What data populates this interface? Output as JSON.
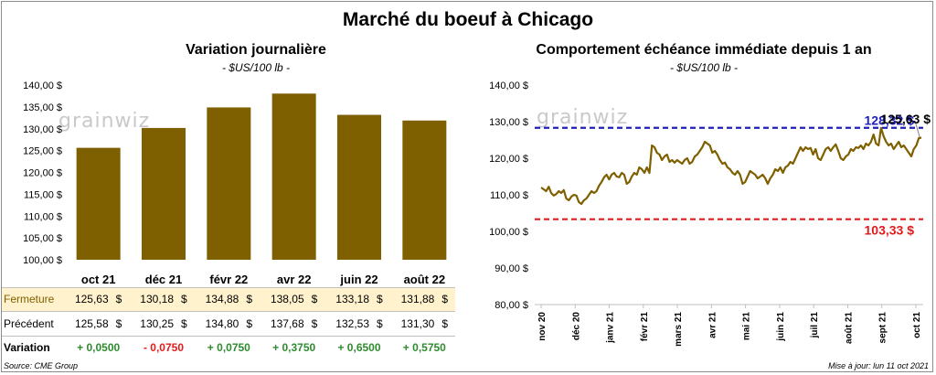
{
  "title": "Marché du boeuf à Chicago",
  "left_chart": {
    "title": "Variation  journalière",
    "unit": "- $US/100 lb -",
    "watermark": "grainwiz"
  },
  "right_chart": {
    "title": "Comportement  échéance immédiate depuis 1 an",
    "unit": "- $US/100 lb -",
    "watermark": "grainwiz"
  },
  "table": {
    "rows": [
      {
        "label": "Fermeture",
        "values": [
          "125,63",
          "130,18",
          "134,88",
          "138,05",
          "133,18",
          "131,88"
        ],
        "unit": "$"
      },
      {
        "label": "Précédent",
        "values": [
          "125,58",
          "130,25",
          "134,80",
          "137,68",
          "132,53",
          "131,30"
        ],
        "unit": "$"
      },
      {
        "label": "Variation",
        "values": [
          "+ 0,0500",
          "- 0,0750",
          "+ 0,0750",
          "+ 0,3750",
          "+ 0,6500",
          "+ 0,5750"
        ]
      }
    ],
    "variation_colors": [
      "#2e8b2e",
      "#e31a1c",
      "#2e8b2e",
      "#2e8b2e",
      "#2e8b2e",
      "#2e8b2e"
    ]
  },
  "footer": {
    "source": "Source: CME Group",
    "updated": "Mise à jour: lun 11 oct 2021"
  },
  "chart_data": [
    {
      "type": "bar",
      "categories": [
        "oct 21",
        "déc 21",
        "févr 22",
        "avr 22",
        "juin 22",
        "août 22"
      ],
      "values": [
        125.63,
        130.18,
        134.88,
        138.05,
        133.18,
        131.88
      ],
      "ylim": [
        100,
        140
      ],
      "yticks": [
        "100,00 $",
        "105,00 $",
        "110,00 $",
        "115,00 $",
        "120,00 $",
        "125,00 $",
        "130,00 $",
        "135,00 $",
        "140,00 $"
      ],
      "bar_color": "#7f6000",
      "grid": false
    },
    {
      "type": "line",
      "x_ticks": [
        "nov 20",
        "déc 20",
        "janv 21",
        "févr 21",
        "mars 21",
        "avr 21",
        "mai 21",
        "juin 21",
        "juil 21",
        "août 21",
        "sept 21",
        "oct 21"
      ],
      "values": [
        112.0,
        111.5,
        111.0,
        112.2,
        110.5,
        109.8,
        110.2,
        111.0,
        110.5,
        111.3,
        109.0,
        108.5,
        109.5,
        110.0,
        109.8,
        108.0,
        107.5,
        108.5,
        109.0,
        110.0,
        111.0,
        110.5,
        111.0,
        112.5,
        113.5,
        114.8,
        115.5,
        114.2,
        115.5,
        116.0,
        115.0,
        114.8,
        116.0,
        115.5,
        113.0,
        113.5,
        115.0,
        116.0,
        115.5,
        117.5,
        117.0,
        116.0,
        117.5,
        116.0,
        123.5,
        123.0,
        121.5,
        121.0,
        119.5,
        120.5,
        121.0,
        119.0,
        119.5,
        118.8,
        119.5,
        119.0,
        118.5,
        119.5,
        120.0,
        118.5,
        119.0,
        120.5,
        121.0,
        122.0,
        123.0,
        124.5,
        124.0,
        123.5,
        121.5,
        122.0,
        121.0,
        119.5,
        118.5,
        118.8,
        117.5,
        117.0,
        116.0,
        115.5,
        116.5,
        115.5,
        113.0,
        113.5,
        115.0,
        116.5,
        116.0,
        115.5,
        114.5,
        115.0,
        115.5,
        114.5,
        113.0,
        114.5,
        115.5,
        117.0,
        116.5,
        117.5,
        116.0,
        117.5,
        118.0,
        119.0,
        118.5,
        120.0,
        121.5,
        123.0,
        122.0,
        123.0,
        122.5,
        122.8,
        121.0,
        122.5,
        120.0,
        119.5,
        121.0,
        122.5,
        123.0,
        122.0,
        123.0,
        123.8,
        122.0,
        120.0,
        119.5,
        120.5,
        121.0,
        122.5,
        122.0,
        123.0,
        122.8,
        123.5,
        122.5,
        124.0,
        123.5,
        124.5,
        126.5,
        124.0,
        123.5,
        128.3,
        126.0,
        124.5,
        123.5,
        124.0,
        122.5,
        123.5,
        124.5,
        123.0,
        123.5,
        122.5,
        121.5,
        120.5,
        122.5,
        123.5,
        125.5,
        125.63
      ],
      "ylim": [
        80,
        140
      ],
      "yticks": [
        "80,00 $",
        "90,00 $",
        "100,00 $",
        "110,00 $",
        "120,00 $",
        "130,00 $",
        "140,00 $"
      ],
      "line_color": "#7f6000",
      "reference_lines": [
        {
          "value": 128.32,
          "label": "128,32 $",
          "color": "#1f1fbf"
        },
        {
          "value": 103.33,
          "label": "103,33 $",
          "color": "#e31a1c"
        }
      ],
      "last_label": "125,63 $",
      "grid": false
    }
  ]
}
